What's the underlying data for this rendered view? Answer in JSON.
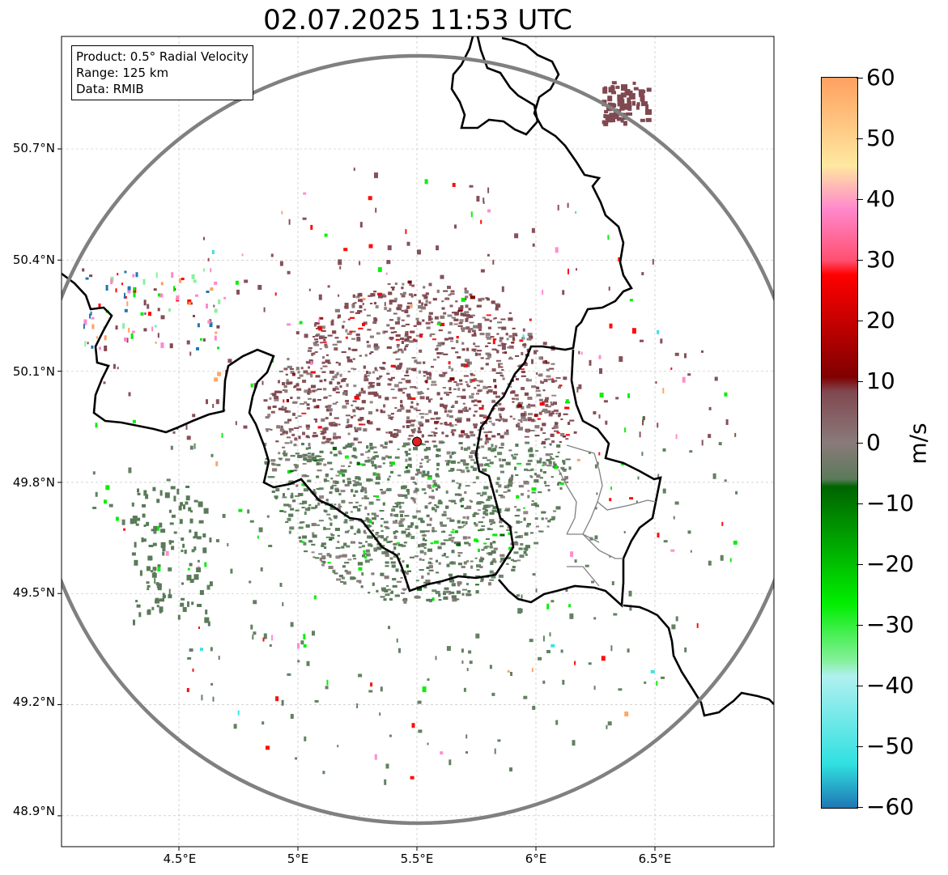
{
  "title": "02.07.2025 11:53 UTC",
  "info_box": [
    "Product: 0.5° Radial Velocity",
    "Range: 125 km",
    "Data: RMIB"
  ],
  "lat_labels": [
    "50.7°N",
    "50.4°N",
    "50.1°N",
    "49.8°N",
    "49.5°N",
    "49.2°N",
    "48.9°N"
  ],
  "lon_labels": [
    "4.5°E",
    "5°E",
    "5.5°E",
    "6°E",
    "6.5°E"
  ],
  "colorbar": {
    "unit": "m/s",
    "min": -60,
    "max": 60,
    "tick_labels": [
      "60",
      "50",
      "40",
      "30",
      "20",
      "10",
      "0",
      "−10",
      "−20",
      "−30",
      "−40",
      "−50",
      "−60"
    ],
    "colors": {
      "very_negative": "#1f77b4",
      "cyan": "#30e0e0",
      "light_cyan": "#b0f0f0",
      "light_green": "#88f0a0",
      "bright_green": "#00ee00",
      "dark_green": "#006400",
      "neg_grey_green": "#5a7a5a",
      "zero_grey": "#8a7a7a",
      "pos_grey_red": "#804850",
      "dark_red": "#800000",
      "red": "#ff0000",
      "pink": "#ff88cc",
      "light_orange": "#ffe8a0",
      "orange": "#ffa060"
    }
  },
  "radar_site": {
    "lon": 5.5,
    "lat": 49.91,
    "color": "#e02020"
  },
  "range_ring_color": "#808080"
}
